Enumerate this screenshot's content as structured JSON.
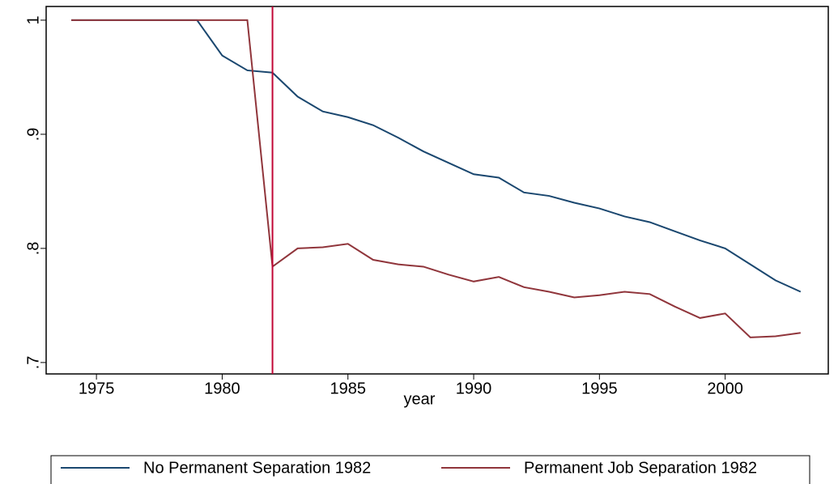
{
  "chart_data": {
    "type": "line",
    "x_label": "year",
    "x": [
      1974,
      1975,
      1976,
      1977,
      1978,
      1979,
      1980,
      1981,
      1982,
      1983,
      1984,
      1985,
      1986,
      1987,
      1988,
      1989,
      1990,
      1991,
      1992,
      1993,
      1994,
      1995,
      1996,
      1997,
      1998,
      1999,
      2000,
      2001,
      2002,
      2003
    ],
    "series": [
      {
        "name": "No Permanent Separation 1982",
        "color": "#1a476f",
        "values": [
          1,
          1,
          1,
          1,
          1,
          1,
          0.969,
          0.956,
          0.954,
          0.933,
          0.92,
          0.915,
          0.908,
          0.897,
          0.885,
          0.875,
          0.865,
          0.862,
          0.849,
          0.846,
          0.84,
          0.835,
          0.828,
          0.823,
          0.815,
          0.807,
          0.8,
          0.786,
          0.772,
          0.762
        ]
      },
      {
        "name": "Permanent Job Separation 1982",
        "color": "#90353b",
        "values": [
          1,
          1,
          1,
          1,
          1,
          1,
          1,
          1,
          0.784,
          0.8,
          0.801,
          0.804,
          0.79,
          0.786,
          0.784,
          0.777,
          0.771,
          0.775,
          0.766,
          0.762,
          0.757,
          0.759,
          0.762,
          0.76,
          0.749,
          0.739,
          0.743,
          0.722,
          0.723,
          0.726
        ]
      }
    ],
    "vline": 1982,
    "vline_color": "#c10534",
    "xlim": [
      1973,
      2004.1
    ],
    "ylim": [
      0.69,
      1.012
    ],
    "xticks": [
      1975,
      1980,
      1985,
      1990,
      1995,
      2000
    ],
    "yticks": [
      {
        "value": 0.7,
        "label": ".7"
      },
      {
        "value": 0.8,
        "label": ".8"
      },
      {
        "value": 0.9,
        "label": ".9"
      },
      1
    ]
  }
}
